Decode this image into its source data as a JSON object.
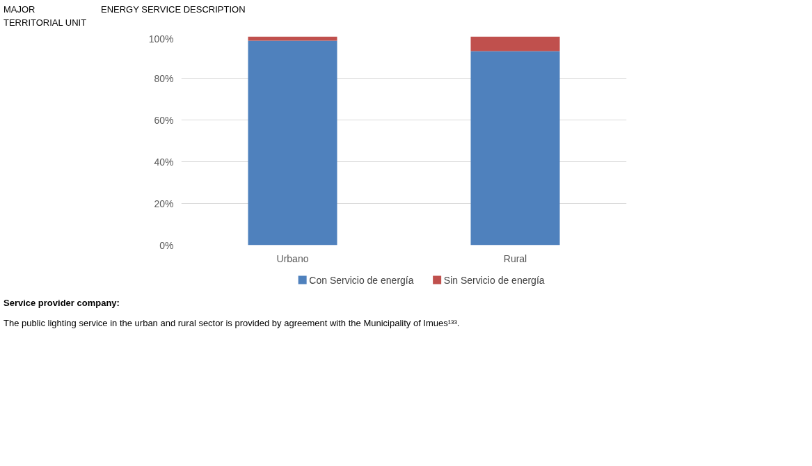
{
  "chart_data": {
    "type": "bar",
    "stacked": true,
    "categories": [
      "Urbano",
      "Rural"
    ],
    "series": [
      {
        "name": "Con Servicio de energía",
        "color": "#4f81bd",
        "values": [
          98,
          93
        ]
      },
      {
        "name": "Sin Servicio de energía",
        "color": "#c0504d",
        "values": [
          2,
          7
        ]
      }
    ],
    "ylim": [
      0,
      100
    ],
    "yticks": [
      {
        "value": 0,
        "label": "0%"
      },
      {
        "value": 20,
        "label": "20%"
      },
      {
        "value": 40,
        "label": "40%"
      },
      {
        "value": 60,
        "label": "60%"
      },
      {
        "value": 80,
        "label": "80%"
      },
      {
        "value": 100,
        "label": "100%"
      }
    ],
    "grid": "y",
    "legend": "bottom",
    "annotations": [
      "MAJOR TERRITORIAL UNIT",
      "ENERGY SERVICE DESCRIPTION",
      "Service provider company:",
      "The public lighting service in the urban and rural sector is provided by agreement with the Municipality of Imues¹³³."
    ]
  }
}
